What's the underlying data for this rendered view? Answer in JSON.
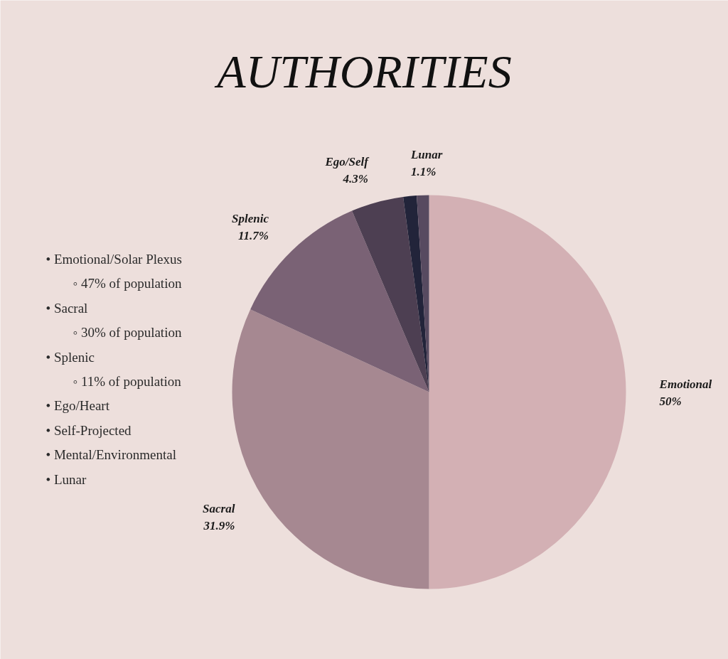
{
  "chart_data": {
    "type": "pie",
    "title": "AUTHORITIES",
    "categories": [
      "Emotional",
      "Sacral",
      "Splenic",
      "Ego/Self",
      "Lunar",
      null
    ],
    "values": [
      50,
      31.9,
      11.7,
      4.3,
      1.1,
      1.0
    ],
    "value_labels": [
      "50%",
      "31.9%",
      "11.7%",
      "4.3%",
      "1.1%",
      null
    ],
    "colors": [
      "#d3b0b4",
      "#a68891",
      "#7a6275",
      "#4d3f52",
      "#22243a",
      "#574a60"
    ],
    "annotations": [
      "• Emotional/Solar Plexus",
      "  ◦ 47% of population",
      "• Sacral",
      "  ◦ 30% of population",
      "• Splenic",
      "  ◦ 11% of population",
      "• Ego/Heart",
      "• Self-Projected",
      "• Mental/Environmental",
      "• Lunar"
    ]
  }
}
